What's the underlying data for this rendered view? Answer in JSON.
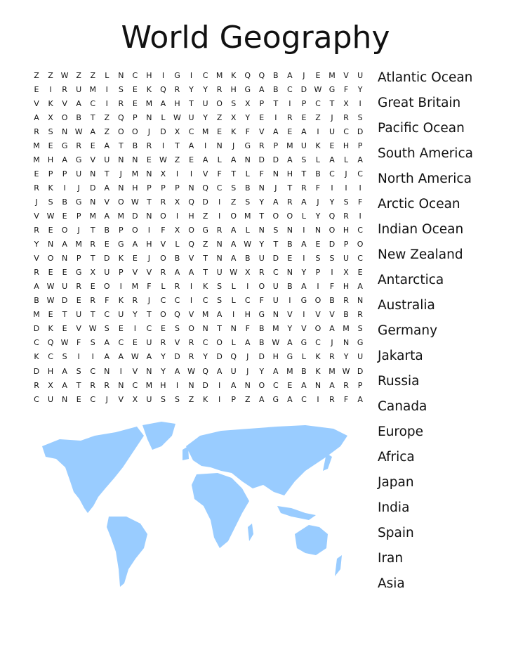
{
  "title": "World Geography",
  "grid": [
    "ZZWZZLNCHIGICMKQQBAJEMVU",
    "EIRUMISEKQRYYRHGABCDWGFY",
    "VKVACIREMAHTUOSXPTIPCTXI",
    "AXOBTZQPNLWUYZXYEIREZJRS",
    "RSNWAZOOJDXCMEKFVAEAIUCD",
    "MEGREATBRITAINJGRPMUKEHP",
    "MHAGVUNNEWZEALANDDASLALA",
    "EPPUNTJMNXIIVFTLFNHTBCJC",
    "RKIJDANHPPPNQCSBNJTRFIII",
    "JSBGNVOWTRXQDIZSYARAJYSF",
    "VWEPMAMDNOIHZIOMTOOLYQRI",
    "REOJTBPOIFXOGRALNSNINOHC",
    "YNAMREGAHVLQZNAWYTBAEDPO",
    "VONPTDKEJOBVTNABUDEISSUC",
    "REEGXUPVVRAATUWXRCNYPIXE",
    "AWUREOIMFLRIKSLIOUBAIFHA",
    "BWDERFKRJCCICSLCFUIGOBRN",
    "METUTCUYTOQVMAIHGNVIVVBR",
    "DKEVWSEICESONTNFBMYVOAMS",
    "CQWFSACEURVRCOLABWAGCJNG",
    "KCSIIAAWAYDRYDQJDHGLKRYU",
    "DHASCNIVNYAWQAUJYAMBKMWD",
    "RXATRRNCMHINDIANOCEANARP",
    "CUNECJVXUSSZKIPZAGACIRFA"
  ],
  "words": [
    "Atlantic Ocean",
    "Great Britain",
    "Pacific Ocean",
    "South America",
    "North America",
    "Arctic Ocean",
    "Indian Ocean",
    "New Zealand",
    "Antarctica",
    "Australia",
    "Germany",
    "Jakarta",
    "Russia",
    "Canada",
    "Europe",
    "Africa",
    "Japan",
    "India",
    "Spain",
    "Iran",
    "Asia"
  ],
  "map_color": "#99ccff"
}
